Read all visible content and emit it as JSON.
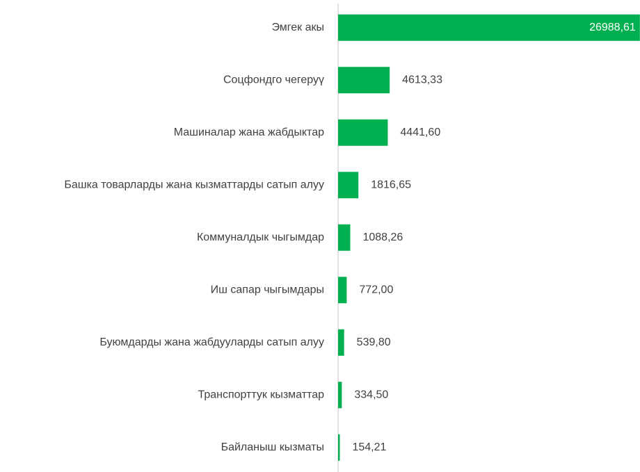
{
  "chart_data": {
    "type": "barh",
    "categories": [
      "Эмгек акы",
      "Соцфондго чегеруү",
      "Машиналар жана жабдыктар",
      "Башка товарларды жана кызматтарды сатып алуу",
      "Коммуналдык чыгымдар",
      "Иш сапар чыгымдары",
      "Буюмдарды жана жабдууларды сатып алуу",
      "Транспорттук кызматтар",
      "Байланыш кызматы"
    ],
    "values": [
      26988.61,
      4613.33,
      4441.6,
      1816.65,
      1088.26,
      772.0,
      539.8,
      334.5,
      154.21
    ],
    "value_labels": [
      "26988,61",
      "4613,33",
      "4441,60",
      "1816,65",
      "1088,26",
      "772,00",
      "539,80",
      "334,50",
      "154,21"
    ],
    "color": "#00b050",
    "xlim": [
      0,
      27000
    ]
  }
}
